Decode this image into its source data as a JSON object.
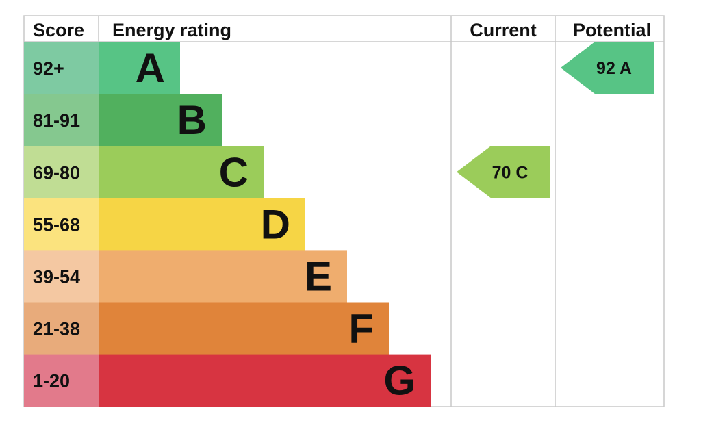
{
  "chart_data": {
    "type": "table",
    "headers": {
      "score": "Score",
      "energy_rating": "Energy rating",
      "current": "Current",
      "potential": "Potential"
    },
    "bands": [
      {
        "score": "92+",
        "letter": "A",
        "color": "#57c485",
        "score_color": "#7ecaa2"
      },
      {
        "score": "81-91",
        "letter": "B",
        "color": "#51b05e",
        "score_color": "#85c88f"
      },
      {
        "score": "69-80",
        "letter": "C",
        "color": "#9bcc5a",
        "score_color": "#c0dd94"
      },
      {
        "score": "55-68",
        "letter": "D",
        "color": "#f6d545",
        "score_color": "#fbe37e"
      },
      {
        "score": "39-54",
        "letter": "E",
        "color": "#efad6e",
        "score_color": "#f4c8a2"
      },
      {
        "score": "21-38",
        "letter": "F",
        "color": "#e0843a",
        "score_color": "#e8ab7b"
      },
      {
        "score": "1-20",
        "letter": "G",
        "color": "#d73441",
        "score_color": "#e27a8b"
      }
    ],
    "current": {
      "value": 70,
      "band": "C",
      "label": "70  C",
      "color": "#9bcc5a"
    },
    "potential": {
      "value": 92,
      "band": "A",
      "label": "92  A",
      "color": "#57c485"
    }
  }
}
